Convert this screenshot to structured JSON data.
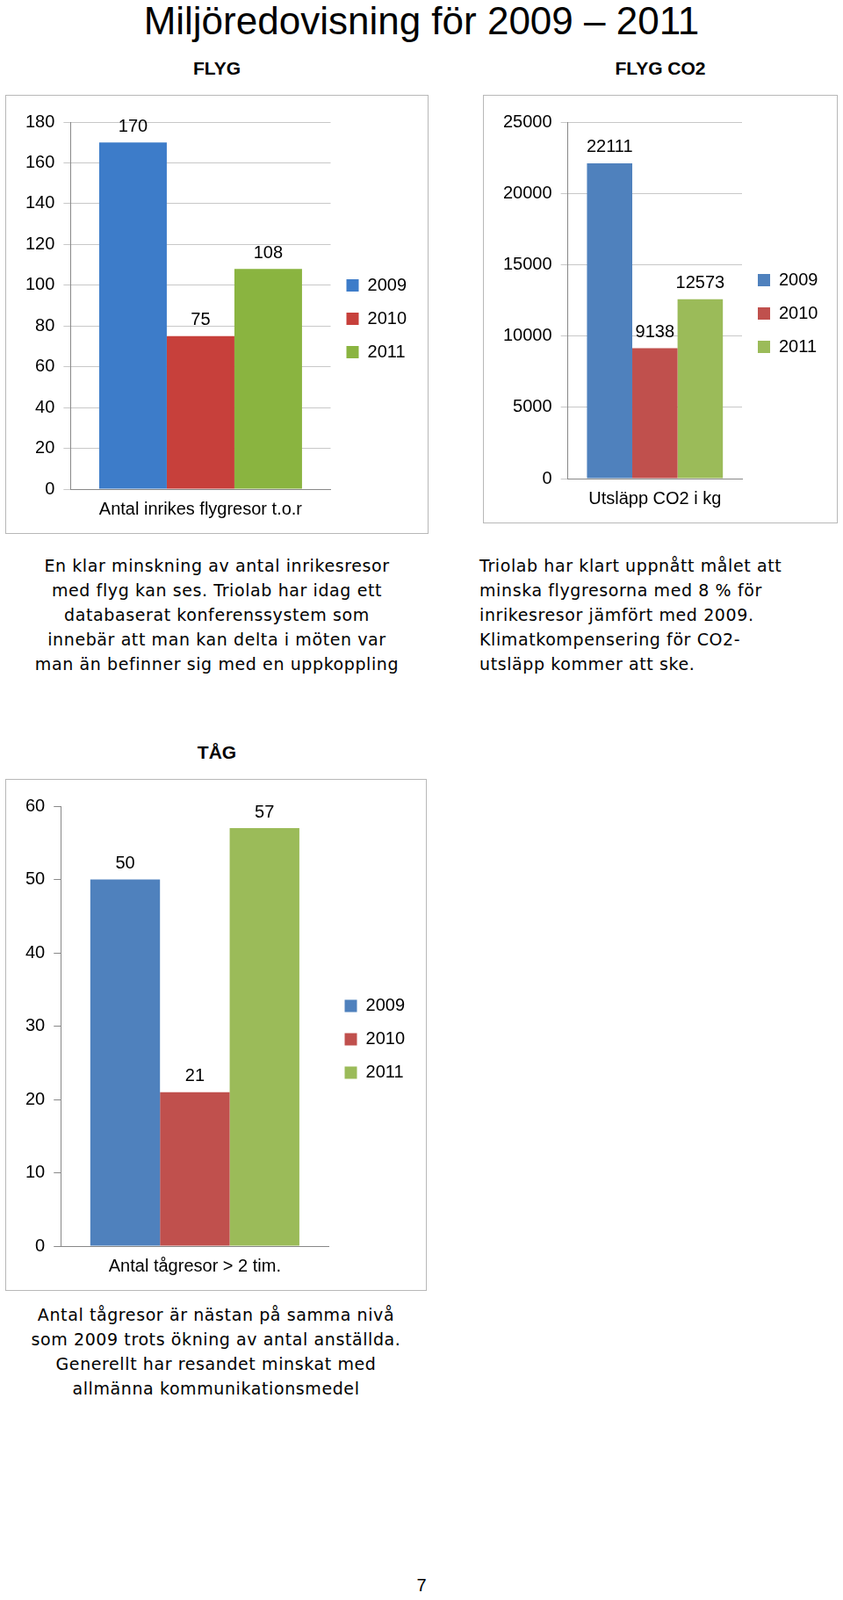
{
  "title": "Miljöredovisning för 2009 – 2011",
  "page_number": 7,
  "chart_data": [
    {
      "type": "bar",
      "title": "FLYG",
      "categories": [
        "Antal inrikes flygresor t.o.r"
      ],
      "series": [
        {
          "name": "2009",
          "color": "#3d7cc9",
          "values": [
            170
          ]
        },
        {
          "name": "2010",
          "color": "#c7403b",
          "values": [
            75
          ]
        },
        {
          "name": "2011",
          "color": "#8ab440",
          "values": [
            108
          ]
        }
      ],
      "ylim": [
        0,
        180
      ],
      "yticks": [
        0,
        20,
        40,
        60,
        80,
        100,
        120,
        140,
        160,
        180
      ],
      "grid": true,
      "legend": "right",
      "data_labels": true,
      "caption": [
        "En klar minskning av antal inrikesresor",
        "med flyg kan ses. Triolab har idag ett",
        "databaserat konferenssystem som",
        "innebär att man kan delta i möten var",
        "man än befinner sig med en uppkoppling"
      ]
    },
    {
      "type": "bar",
      "title": "FLYG CO2",
      "categories": [
        "Utsläpp CO2 i kg"
      ],
      "series": [
        {
          "name": "2009",
          "color": "#4f81bd",
          "values": [
            22111
          ]
        },
        {
          "name": "2010",
          "color": "#c0504d",
          "values": [
            9138
          ]
        },
        {
          "name": "2011",
          "color": "#9bbb59",
          "values": [
            12573
          ]
        }
      ],
      "ylim": [
        0,
        25000
      ],
      "yticks": [
        0,
        5000,
        10000,
        15000,
        20000,
        25000
      ],
      "grid": true,
      "legend": "right",
      "data_labels": true,
      "caption": [
        "Triolab har klart uppnått målet att",
        "minska flygresorna med 8 % för",
        "inrikesresor jämfört med 2009.",
        "Klimatkompensering för CO2-",
        "utsläpp kommer att ske."
      ]
    },
    {
      "type": "bar",
      "title": "TÅG",
      "categories": [
        "Antal tågresor > 2 tim."
      ],
      "series": [
        {
          "name": "2009",
          "color": "#4f81bd",
          "values": [
            50
          ]
        },
        {
          "name": "2010",
          "color": "#c0504d",
          "values": [
            21
          ]
        },
        {
          "name": "2011",
          "color": "#9bbb59",
          "values": [
            57
          ]
        }
      ],
      "ylim": [
        0,
        60
      ],
      "yticks": [
        0,
        10,
        20,
        30,
        40,
        50,
        60
      ],
      "grid": false,
      "legend": "right",
      "data_labels": true,
      "caption": [
        "Antal tågresor är nästan på samma nivå",
        "som 2009 trots ökning av antal anställda.",
        "Generellt har resandet minskat med",
        "allmänna kommunikationsmedel"
      ]
    }
  ]
}
